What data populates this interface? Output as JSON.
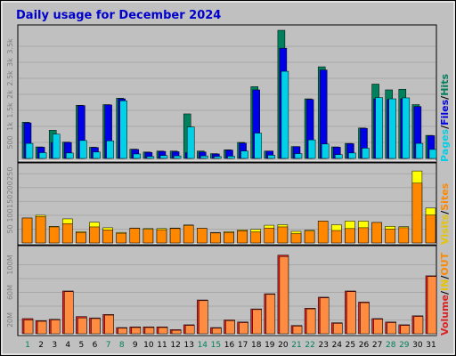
{
  "title": "Daily usage for December 2024",
  "colors": {
    "frame_bg": "#C0C0C0",
    "title": "#0000CC",
    "hits": "#00805C",
    "files": "#0000E6",
    "pages": "#00D0E8",
    "visits": "#FFFF00",
    "sites": "#FF8800",
    "volume": "#E02020",
    "kb_out": "#FF8C40",
    "weekend_label": "#00805C",
    "weekday_label": "#0000CC"
  },
  "legends": {
    "top": [
      {
        "text": "Pages",
        "color": "#00D0E8"
      },
      {
        "text": "/",
        "color": "#000000"
      },
      {
        "text": "Files",
        "color": "#0000E6"
      },
      {
        "text": "/",
        "color": "#000000"
      },
      {
        "text": "Hits",
        "color": "#00805C"
      }
    ],
    "middle": [
      {
        "text": "Visits",
        "color": "#E8C400"
      },
      {
        "text": "/",
        "color": "#000000"
      },
      {
        "text": "Sites",
        "color": "#FF8800"
      }
    ],
    "bottom": [
      {
        "text": "Volume",
        "color": "#E02020"
      },
      {
        "text": "/",
        "color": "#000000"
      },
      {
        "text": "IN",
        "color": "#E8C400"
      },
      {
        "text": "/",
        "color": "#000000"
      },
      {
        "text": "OUT",
        "color": "#FF8800"
      }
    ]
  },
  "chart_data": [
    {
      "type": "bar",
      "panel": "top",
      "categories": [
        "1",
        "2",
        "3",
        "4",
        "5",
        "6",
        "7",
        "8",
        "9",
        "10",
        "11",
        "12",
        "13",
        "14",
        "15",
        "16",
        "17",
        "18",
        "19",
        "20",
        "21",
        "22",
        "23",
        "24",
        "25",
        "26",
        "27",
        "28",
        "29",
        "30",
        "31"
      ],
      "ylim": [
        0,
        4000
      ],
      "yticks": [
        500,
        1000,
        1500,
        2000,
        2500,
        3000,
        3500
      ],
      "yticklabels": [
        "500",
        "1k",
        "1.5k",
        "2k",
        "2.5k",
        "3k",
        "3.5k"
      ],
      "series": [
        {
          "name": "Hits",
          "values": [
            1130,
            360,
            880,
            510,
            1660,
            350,
            1680,
            1880,
            290,
            200,
            230,
            230,
            1390,
            230,
            150,
            270,
            500,
            2240,
            230,
            4000,
            370,
            1860,
            2860,
            360,
            470,
            950,
            2320,
            2140,
            2160,
            1680,
            720
          ]
        },
        {
          "name": "Files",
          "values": [
            1110,
            350,
            500,
            500,
            1650,
            340,
            1670,
            1860,
            280,
            190,
            220,
            210,
            180,
            200,
            140,
            260,
            480,
            2140,
            230,
            3440,
            370,
            1840,
            2760,
            350,
            460,
            940,
            1860,
            1840,
            1860,
            1620,
            710
          ]
        },
        {
          "name": "Pages",
          "values": [
            470,
            180,
            760,
            170,
            560,
            200,
            550,
            1800,
            140,
            60,
            90,
            80,
            980,
            80,
            60,
            70,
            230,
            790,
            100,
            2720,
            150,
            580,
            450,
            120,
            170,
            320,
            1900,
            1860,
            1890,
            470,
            280
          ]
        }
      ]
    },
    {
      "type": "bar",
      "panel": "middle",
      "categories": [
        "1",
        "2",
        "3",
        "4",
        "5",
        "6",
        "7",
        "8",
        "9",
        "10",
        "11",
        "12",
        "13",
        "14",
        "15",
        "16",
        "17",
        "18",
        "19",
        "20",
        "21",
        "22",
        "23",
        "24",
        "25",
        "26",
        "27",
        "28",
        "29",
        "30",
        "31"
      ],
      "ylim": [
        0,
        270
      ],
      "yticks": [
        50,
        100,
        150,
        200,
        250
      ],
      "yticklabels": [
        "50",
        "100",
        "150",
        "200",
        "250"
      ],
      "series": [
        {
          "name": "Visits",
          "values": [
            90,
            100,
            60,
            87,
            41,
            75,
            55,
            38,
            54,
            52,
            52,
            54,
            65,
            53,
            38,
            41,
            47,
            49,
            64,
            66,
            42,
            46,
            79,
            66,
            79,
            79,
            74,
            60,
            59,
            260,
            126
          ]
        },
        {
          "name": "Sites",
          "values": [
            90,
            95,
            58,
            70,
            38,
            58,
            47,
            35,
            53,
            49,
            48,
            52,
            63,
            53,
            36,
            38,
            44,
            40,
            54,
            58,
            34,
            43,
            79,
            45,
            52,
            55,
            74,
            50,
            55,
            216,
            101
          ]
        }
      ]
    },
    {
      "type": "bar",
      "panel": "bottom",
      "categories": [
        "1",
        "2",
        "3",
        "4",
        "5",
        "6",
        "7",
        "8",
        "9",
        "10",
        "11",
        "12",
        "13",
        "14",
        "15",
        "16",
        "17",
        "18",
        "19",
        "20",
        "21",
        "22",
        "23",
        "24",
        "25",
        "26",
        "27",
        "28",
        "29",
        "30",
        "31"
      ],
      "ylim": [
        0,
        120
      ],
      "yticks": [
        20,
        40,
        60,
        80,
        100
      ],
      "yticklabels": [
        "20M",
        "",
        "60M",
        "",
        "100M"
      ],
      "series": [
        {
          "name": "Volume",
          "values": [
            22,
            19,
            21,
            62,
            25,
            23,
            28,
            9,
            10,
            10,
            10,
            6,
            13,
            49,
            9,
            20,
            17,
            36,
            58,
            114,
            12,
            37,
            53,
            16,
            62,
            46,
            22,
            17,
            13,
            26,
            84
          ]
        },
        {
          "name": "OUT",
          "values": [
            20,
            18,
            20,
            61,
            23,
            22,
            27,
            8,
            9,
            9,
            9,
            5,
            12,
            48,
            8,
            19,
            16,
            35,
            57,
            112,
            11,
            36,
            52,
            15,
            61,
            45,
            21,
            16,
            12,
            25,
            83
          ]
        }
      ]
    }
  ],
  "x_labels_weekend": [
    "1",
    "7",
    "8",
    "14",
    "15",
    "21",
    "22",
    "28",
    "29"
  ]
}
